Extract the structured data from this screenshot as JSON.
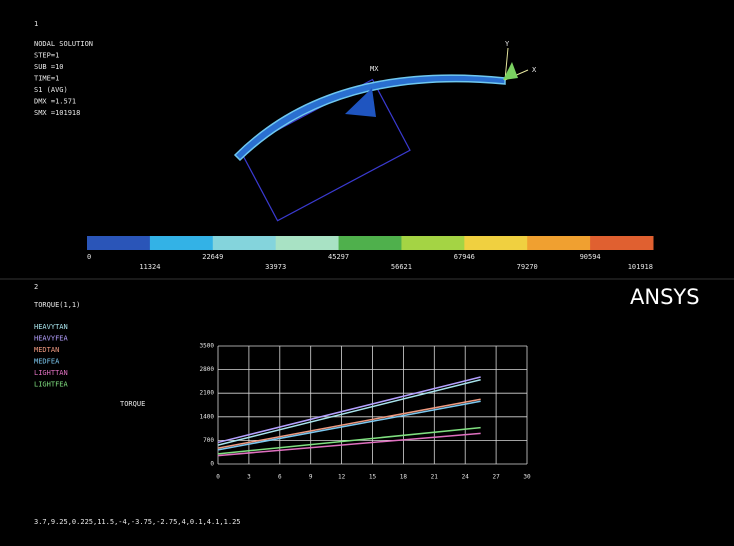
{
  "top_panel": {
    "window_number": "1",
    "info_lines": [
      "NODAL SOLUTION",
      "STEP=1",
      "SUB =10",
      "TIME=1",
      "S1       (AVG)",
      "DMX =1.571",
      "SMX =101918"
    ],
    "max_marker": "MX",
    "triad_y": "Y",
    "triad_x": "X",
    "contour_legend": {
      "colors": [
        "#2a55b8",
        "#33b2e6",
        "#84d4dc",
        "#a8e2c4",
        "#4fb04c",
        "#a4d444",
        "#f0d040",
        "#f0a030",
        "#e06030"
      ],
      "labels": [
        0,
        11324,
        22649,
        33973,
        45297,
        56621,
        67946,
        79270,
        90594,
        101918
      ]
    }
  },
  "bottom_panel": {
    "window_number": "2",
    "logo": "ANSYS",
    "status_line": "3.7,9.25,0.225,11.5,-4,-3.75,-2.75,4,0.1,4.1,1.25"
  },
  "chart_data": {
    "type": "line",
    "title": "TORQUE(1,1)",
    "y_label": "TORQUE",
    "x": [
      0,
      25.5
    ],
    "series": [
      {
        "name": "HEAVYTAN",
        "color": "#a8e4ec",
        "values": [
          560,
          2500
        ]
      },
      {
        "name": "HEAVYFEA",
        "color": "#b4a0ff",
        "values": [
          640,
          2580
        ]
      },
      {
        "name": "MEDTAN",
        "color": "#f09a80",
        "values": [
          470,
          1920
        ]
      },
      {
        "name": "MEDFEA",
        "color": "#7cc8f0",
        "values": [
          420,
          1860
        ]
      },
      {
        "name": "LIGHTTAN",
        "color": "#e070c0",
        "values": [
          250,
          910
        ]
      },
      {
        "name": "LIGHTFEA",
        "color": "#80e080",
        "values": [
          300,
          1080
        ]
      }
    ],
    "xlim": [
      0,
      30
    ],
    "xticks": [
      0,
      3,
      6,
      9,
      12,
      15,
      18,
      21,
      24,
      27,
      30
    ],
    "ylim": [
      0,
      3500
    ],
    "yticks": [
      0,
      700,
      1400,
      2100,
      2800,
      3500
    ],
    "grid": true
  }
}
